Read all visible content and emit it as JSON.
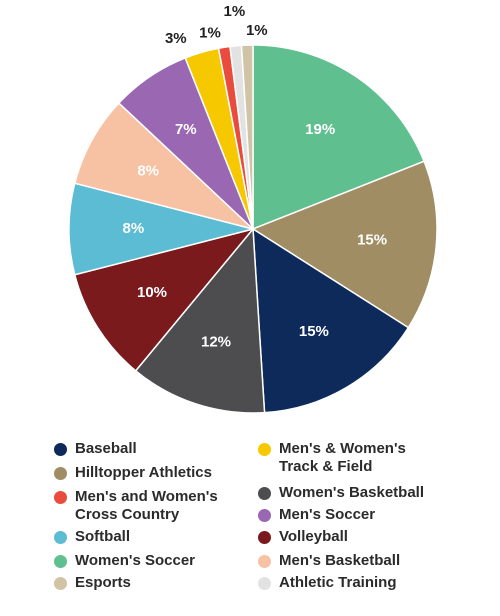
{
  "chart_data": {
    "type": "pie",
    "title": "",
    "slices": [
      {
        "label": "Women's Soccer",
        "value": 19,
        "display": "19%",
        "color": "#5fbf8e"
      },
      {
        "label": "Hilltopper Athletics",
        "value": 15,
        "display": "15%",
        "color": "#a08d63"
      },
      {
        "label": "Baseball",
        "value": 15,
        "display": "15%",
        "color": "#0d2a5a"
      },
      {
        "label": "Women's Basketball",
        "value": 12,
        "display": "12%",
        "color": "#4d4d4f"
      },
      {
        "label": "Volleyball",
        "value": 10,
        "display": "10%",
        "color": "#7a1a1c"
      },
      {
        "label": "Softball",
        "value": 8,
        "display": "8%",
        "color": "#5bbcd3"
      },
      {
        "label": "Men's Basketball",
        "value": 8,
        "display": "8%",
        "color": "#f7c2a3"
      },
      {
        "label": "Men's Soccer",
        "value": 7,
        "display": "7%",
        "color": "#9a67b3"
      },
      {
        "label": "Men's & Women's Track & Field",
        "value": 3,
        "display": "3%",
        "color": "#f5c800"
      },
      {
        "label": "Men's and Women's Cross Country",
        "value": 1,
        "display": "1%",
        "color": "#e94b3c"
      },
      {
        "label": "Athletic Training",
        "value": 1,
        "display": "1%",
        "color": "#e2e2e2"
      },
      {
        "label": "Esports",
        "value": 1,
        "display": "1%",
        "color": "#d1c3a6"
      }
    ],
    "legend": {
      "placement": "bottom",
      "left_column": [
        {
          "label": "Baseball",
          "color": "#0d2a5a"
        },
        {
          "label": "Hilltopper Athletics",
          "color": "#a08d63"
        },
        {
          "label": "Men's and Women's\nCross Country",
          "color": "#e94b3c"
        },
        {
          "label": "Softball",
          "color": "#5bbcd3"
        },
        {
          "label": "Women's Soccer",
          "color": "#5fbf8e"
        },
        {
          "label": "Esports",
          "color": "#d1c3a6"
        }
      ],
      "right_column": [
        {
          "label": "Men's & Women's\nTrack & Field",
          "color": "#f5c800"
        },
        {
          "label": "Women's Basketball",
          "color": "#4d4d4f"
        },
        {
          "label": "Men's Soccer",
          "color": "#9a67b3"
        },
        {
          "label": "Volleyball",
          "color": "#7a1a1c"
        },
        {
          "label": "Men's Basketball",
          "color": "#f7c2a3"
        },
        {
          "label": "Athletic Training",
          "color": "#e2e2e2"
        }
      ]
    }
  }
}
